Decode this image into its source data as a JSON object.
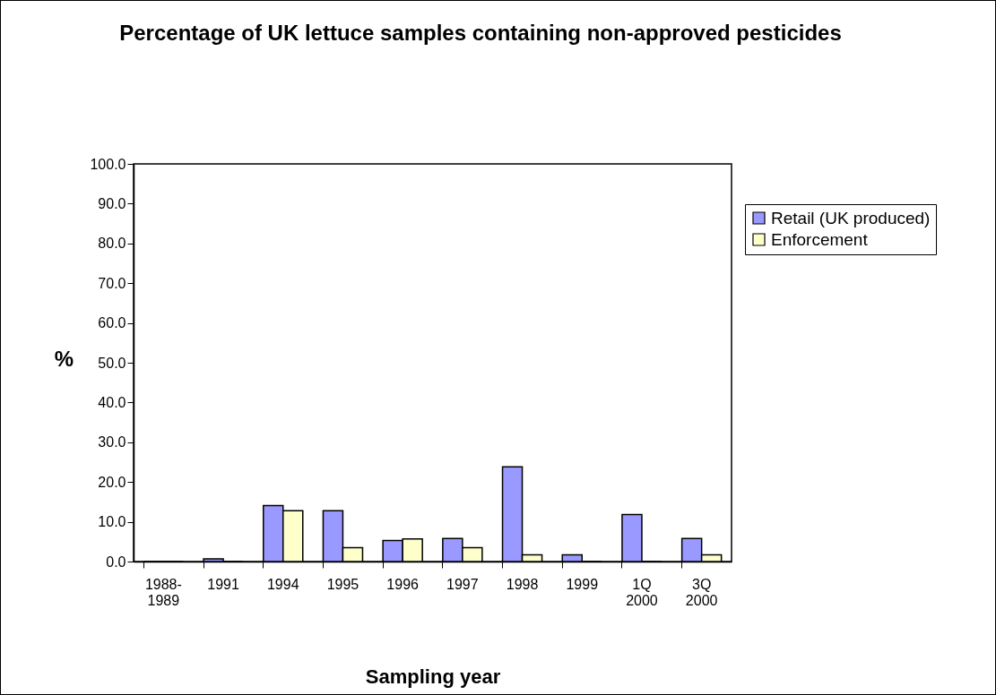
{
  "chart_data": {
    "type": "bar",
    "title": "Percentage of UK lettuce samples containing non-approved pesticides",
    "xlabel": "Sampling year",
    "ylabel": "%",
    "categories": [
      "1988-1989",
      "1991",
      "1994",
      "1995",
      "1996",
      "1997",
      "1998",
      "1999",
      "1Q 2000",
      "3Q 2000"
    ],
    "series": [
      {
        "name": "Retail (UK produced)",
        "color": "#9999ff",
        "values": [
          0,
          0.7,
          14.1,
          12.8,
          5.3,
          5.8,
          23.8,
          1.7,
          11.8,
          5.8
        ]
      },
      {
        "name": "Enforcement",
        "color": "#ffffcc",
        "values": [
          0,
          0,
          12.8,
          3.5,
          5.7,
          3.5,
          1.7,
          0,
          0,
          1.7
        ]
      }
    ],
    "ylim": [
      0,
      100
    ],
    "yticks": [
      {
        "value": 0,
        "label": "0.0"
      },
      {
        "value": 10,
        "label": "10.0"
      },
      {
        "value": 20,
        "label": "20.0"
      },
      {
        "value": 30,
        "label": "30.0"
      },
      {
        "value": 40,
        "label": "40.0"
      },
      {
        "value": 50,
        "label": "50.0"
      },
      {
        "value": 60,
        "label": "60.0"
      },
      {
        "value": 70,
        "label": "70.0"
      },
      {
        "value": 80,
        "label": "80.0"
      },
      {
        "value": 90,
        "label": "90.0"
      },
      {
        "value": 100,
        "label": "100.0"
      }
    ],
    "grid": false,
    "legend": "top right"
  }
}
